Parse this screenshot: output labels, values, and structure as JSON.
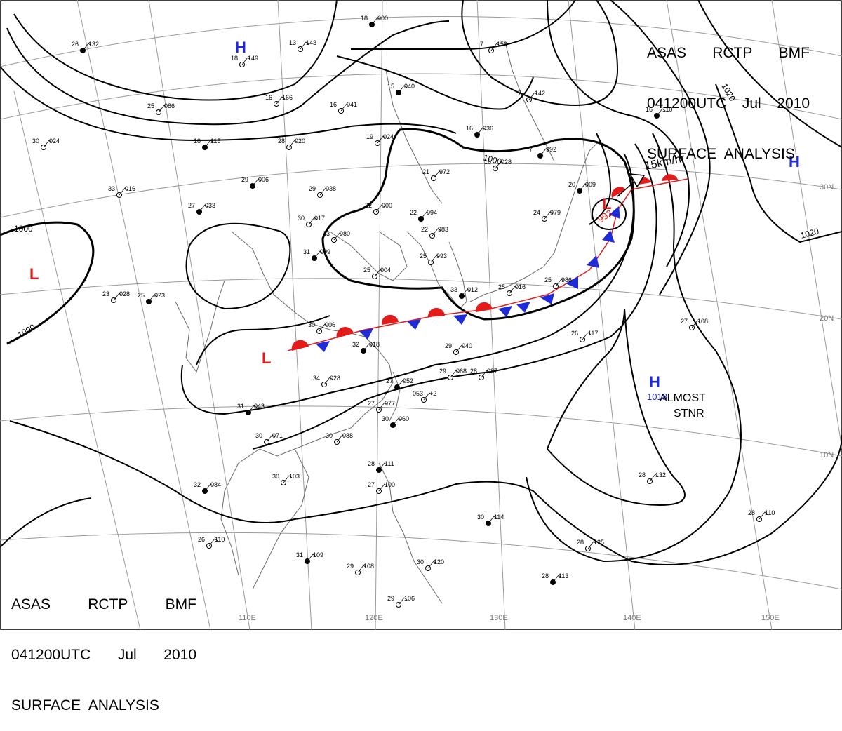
{
  "header_top": {
    "line1": [
      "ASAS",
      "RCTP",
      "BMF"
    ],
    "line2": [
      "041200UTC",
      "Jul",
      "2010"
    ],
    "line3": "SURFACE  ANALYSIS"
  },
  "header_bottom": {
    "line1": [
      "ASAS",
      "RCTP",
      "BMF"
    ],
    "line2": [
      "041200UTC",
      "Jul",
      "2010"
    ],
    "line3": "SURFACE  ANALYSIS"
  },
  "longitude_labels": [
    "110E",
    "120E",
    "130E",
    "140E",
    "150E"
  ],
  "latitude_labels": [
    "30N",
    "20N",
    "10N"
  ],
  "isobar_labels": {
    "c1000_west": "1000",
    "c1000_west_bottom": "1000",
    "c1000_center": "1000",
    "c1020_east_top": "1020",
    "c1020_east_right": "1020"
  },
  "pressure_centers": {
    "high_nw": "H",
    "high_east": "H",
    "high_se": "H",
    "high_se_value": "1018",
    "low_west": "L",
    "low_china": "L",
    "low_japan": "L",
    "low_japan_value": "992"
  },
  "annotations": {
    "movement": "15km/hr",
    "almost": "ALMOST",
    "stnr": "STNR"
  },
  "stations": [
    {
      "t": "26",
      "p": "132"
    },
    {
      "t": "18",
      "p": "149"
    },
    {
      "t": "13",
      "p": "143"
    },
    {
      "t": "18",
      "p": "000"
    },
    {
      "t": "25",
      "p": "086"
    },
    {
      "t": "16",
      "p": "041"
    },
    {
      "t": "15",
      "p": "040"
    },
    {
      "t": "16",
      "p": "166"
    },
    {
      "t": "30",
      "p": "024"
    },
    {
      "t": "18",
      "p": "115"
    },
    {
      "t": "28",
      "p": "020"
    },
    {
      "t": "19",
      "p": "024"
    },
    {
      "t": "16",
      "p": "036"
    },
    {
      "t": "16",
      "p": "028"
    },
    {
      "t": "21",
      "p": "972"
    },
    {
      "t": "29",
      "p": "006"
    },
    {
      "t": "29",
      "p": "038"
    },
    {
      "t": "33",
      "p": "016"
    },
    {
      "t": "27",
      "p": "033"
    },
    {
      "t": "30",
      "p": "017"
    },
    {
      "t": "22",
      "p": "000"
    },
    {
      "t": "22",
      "p": "994"
    },
    {
      "t": "33",
      "p": "980"
    },
    {
      "t": "22",
      "p": "983"
    },
    {
      "t": "31",
      "p": "009"
    },
    {
      "t": "25",
      "p": "993"
    },
    {
      "t": "25",
      "p": "004"
    },
    {
      "t": "33",
      "p": "012"
    },
    {
      "t": "25",
      "p": "016"
    },
    {
      "t": "24",
      "p": "979"
    },
    {
      "t": "20",
      "p": "009"
    },
    {
      "t": "25",
      "p": "986"
    },
    {
      "t": "30",
      "p": "006"
    },
    {
      "t": "32",
      "p": "018"
    },
    {
      "t": "29",
      "p": "040"
    },
    {
      "t": "34",
      "p": "028"
    },
    {
      "t": "27",
      "p": "052"
    },
    {
      "t": "29",
      "p": "068"
    },
    {
      "t": "28",
      "p": "087"
    },
    {
      "t": "31",
      "p": "043"
    },
    {
      "t": "27",
      "p": "077"
    },
    {
      "t": "053",
      "p": "+2"
    },
    {
      "t": "30",
      "p": "060"
    },
    {
      "t": "30",
      "p": "071"
    },
    {
      "t": "30",
      "p": "088"
    },
    {
      "t": "28",
      "p": "111"
    },
    {
      "t": "30",
      "p": "103"
    },
    {
      "t": "27",
      "p": "100"
    },
    {
      "t": "32",
      "p": "084"
    },
    {
      "t": "26",
      "p": "117"
    },
    {
      "t": "27",
      "p": "108"
    },
    {
      "t": "16",
      "p": "110"
    },
    {
      "t": "7",
      "p": "159"
    },
    {
      "t": "7",
      "p": "142"
    },
    {
      "t": "7",
      "p": "992"
    },
    {
      "t": "28",
      "p": "132"
    },
    {
      "t": "28",
      "p": "110"
    },
    {
      "t": "30",
      "p": "114"
    },
    {
      "t": "28",
      "p": "125"
    },
    {
      "t": "26",
      "p": "110"
    },
    {
      "t": "31",
      "p": "109"
    },
    {
      "t": "29",
      "p": "108"
    },
    {
      "t": "30",
      "p": "120"
    },
    {
      "t": "28",
      "p": "113"
    },
    {
      "t": "29",
      "p": "106"
    },
    {
      "t": "23",
      "p": "028"
    },
    {
      "t": "25",
      "p": "023"
    }
  ],
  "colors": {
    "warm_front": "#e21b1b",
    "cold_front": "#1f2bd6",
    "high_symbol": "#1f2bd6",
    "low_symbol": "#e21b1b",
    "isobar": "#000000",
    "grid": "#9a9a9a",
    "coast": "#6a6a6a"
  }
}
